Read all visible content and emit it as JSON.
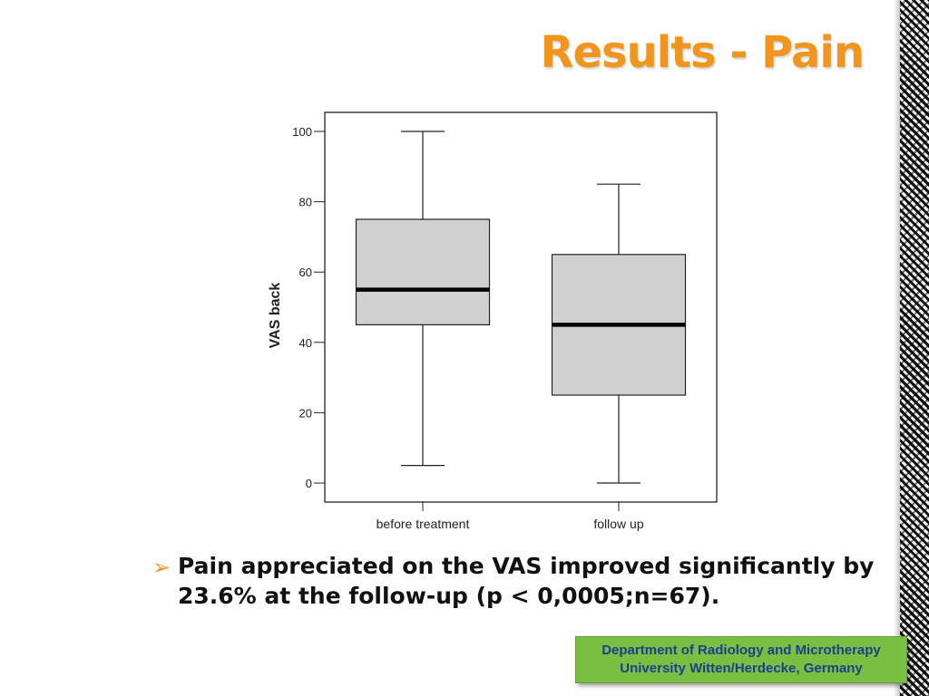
{
  "slide": {
    "title": "Results - Pain",
    "bullet_text": "Pain appreciated on the VAS improved significantly by 23.6% at the follow-up (p < 0,0005;n=67).",
    "footer_line1": "Department of Radiology and Microtherapy",
    "footer_line2": "University Witten/Herdecke, Germany",
    "colors": {
      "title": "#f0951e",
      "bullet_arrow": "#f0951e",
      "footer_bg": "#78c042",
      "footer_text": "#1e3f8c"
    }
  },
  "chart_data": {
    "type": "boxplot",
    "ylabel": "VAS back",
    "xlabel": "",
    "ylim": [
      0,
      100
    ],
    "yticks": [
      0,
      20,
      40,
      60,
      80,
      100
    ],
    "categories": [
      "before treatment",
      "follow up"
    ],
    "boxes": [
      {
        "min": 5,
        "q1": 45,
        "median": 55,
        "q3": 75,
        "max": 100
      },
      {
        "min": 0,
        "q1": 25,
        "median": 45,
        "q3": 65,
        "max": 85
      }
    ],
    "box_fill": "#d0d0d0",
    "grid": false
  }
}
